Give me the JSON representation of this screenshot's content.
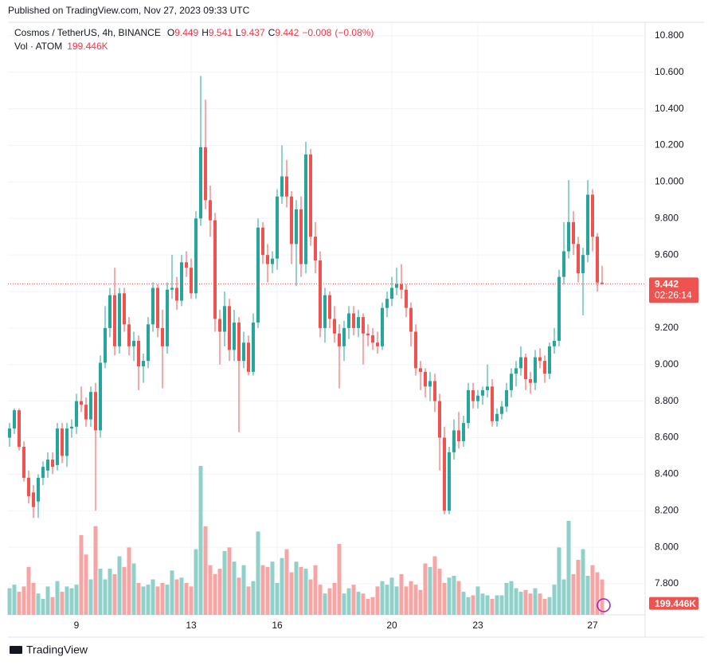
{
  "published": "Published on TradingView.com, Nov 27, 2023 09:33 UTC",
  "logo": "TradingView",
  "chart_data": {
    "type": "candlestick",
    "title": "Cosmos / TetherUS, 4h, BINANCE",
    "legend": {
      "fields": [
        {
          "letter": "O",
          "value": 9.449
        },
        {
          "letter": "H",
          "value": 9.541
        },
        {
          "letter": "L",
          "value": 9.437
        },
        {
          "letter": "C",
          "value": 9.442
        }
      ],
      "change": {
        "value": -0.008,
        "label": "−0.008"
      },
      "change_pct": {
        "value": -0.08,
        "label": "(−0.08%)"
      }
    },
    "volume_legend": {
      "name": "Vol · ATOM",
      "value": 199446,
      "label": "199.446K"
    },
    "countdown": "02:26:14",
    "up_color": "#26a69a",
    "down_color": "#ef5350",
    "up_volume_color": "#8fd1c9",
    "down_volume_color": "#f5a6a4",
    "grid": true,
    "ylim": [
      7.63,
      10.865
    ],
    "yticks": [
      {
        "value": 7.8,
        "label": "7.800"
      },
      {
        "value": 8.0,
        "label": "8.000"
      },
      {
        "value": 8.2,
        "label": "8.200"
      },
      {
        "value": 8.4,
        "label": "8.400"
      },
      {
        "value": 8.6,
        "label": "8.600"
      },
      {
        "value": 8.8,
        "label": "8.800"
      },
      {
        "value": 9.0,
        "label": "9.000"
      },
      {
        "value": 9.2,
        "label": "9.200"
      },
      {
        "value": 9.4,
        "label": "9.400"
      },
      {
        "value": 9.6,
        "label": "9.600"
      },
      {
        "value": 9.8,
        "label": "9.800"
      },
      {
        "value": 10.0,
        "label": "10.000"
      },
      {
        "value": 10.2,
        "label": "10.200"
      },
      {
        "value": 10.4,
        "label": "10.400"
      },
      {
        "value": 10.6,
        "label": "10.600"
      },
      {
        "value": 10.8,
        "label": "10.800"
      }
    ],
    "categories": [
      null,
      null,
      null,
      null,
      null,
      null,
      null,
      null,
      null,
      null,
      null,
      null,
      null,
      null,
      "9",
      null,
      null,
      null,
      null,
      null,
      null,
      null,
      null,
      null,
      null,
      null,
      null,
      null,
      null,
      null,
      null,
      null,
      null,
      null,
      null,
      null,
      null,
      null,
      "13",
      null,
      null,
      null,
      null,
      null,
      null,
      null,
      null,
      null,
      null,
      null,
      null,
      null,
      null,
      null,
      null,
      null,
      "16",
      null,
      null,
      null,
      null,
      null,
      null,
      null,
      null,
      null,
      null,
      null,
      null,
      null,
      null,
      null,
      null,
      null,
      null,
      null,
      null,
      null,
      null,
      null,
      "20",
      null,
      null,
      null,
      null,
      null,
      null,
      null,
      null,
      null,
      null,
      null,
      null,
      null,
      null,
      null,
      null,
      null,
      "23",
      null,
      null,
      null,
      null,
      null,
      null,
      null,
      null,
      null,
      null,
      null,
      null,
      null,
      null,
      null,
      null,
      null,
      null,
      null,
      null,
      null,
      null,
      null,
      "27",
      null,
      null
    ],
    "ohlc": [
      [
        8.6,
        8.68,
        8.55,
        8.65
      ],
      [
        8.65,
        8.76,
        8.62,
        8.75
      ],
      [
        8.75,
        8.76,
        8.53,
        8.55
      ],
      [
        8.55,
        8.58,
        8.36,
        8.38
      ],
      [
        8.38,
        8.42,
        8.24,
        8.28
      ],
      [
        8.3,
        8.34,
        8.16,
        8.22
      ],
      [
        8.25,
        8.4,
        8.16,
        8.38
      ],
      [
        8.38,
        8.47,
        8.34,
        8.44
      ],
      [
        8.42,
        8.52,
        8.38,
        8.48
      ],
      [
        8.48,
        8.52,
        8.4,
        8.44
      ],
      [
        8.45,
        8.68,
        8.42,
        8.65
      ],
      [
        8.65,
        8.68,
        8.46,
        8.5
      ],
      [
        8.5,
        8.68,
        8.44,
        8.65
      ],
      [
        8.65,
        8.7,
        8.6,
        8.66
      ],
      [
        8.66,
        8.84,
        8.62,
        8.8
      ],
      [
        8.8,
        8.88,
        8.74,
        8.78
      ],
      [
        8.78,
        8.82,
        8.66,
        8.7
      ],
      [
        8.7,
        8.88,
        8.66,
        8.85
      ],
      [
        8.85,
        8.9,
        8.2,
        8.64
      ],
      [
        8.64,
        9.05,
        8.6,
        9.01
      ],
      [
        9.01,
        9.32,
        8.98,
        9.2
      ],
      [
        9.2,
        9.42,
        9.15,
        9.38
      ],
      [
        9.38,
        9.53,
        9.05,
        9.1
      ],
      [
        9.1,
        9.42,
        9.06,
        9.39
      ],
      [
        9.39,
        9.42,
        9.18,
        9.22
      ],
      [
        9.22,
        9.26,
        9.05,
        9.1
      ],
      [
        9.1,
        9.18,
        9.02,
        9.13
      ],
      [
        9.13,
        9.16,
        8.86,
        8.99
      ],
      [
        8.99,
        9.06,
        8.9,
        9.02
      ],
      [
        9.02,
        9.26,
        8.98,
        9.22
      ],
      [
        9.22,
        9.45,
        9.18,
        9.42
      ],
      [
        9.42,
        9.44,
        9.15,
        9.2
      ],
      [
        9.2,
        9.3,
        8.87,
        9.1
      ],
      [
        9.1,
        9.45,
        9.06,
        9.41
      ],
      [
        9.41,
        9.6,
        9.36,
        9.42
      ],
      [
        9.42,
        9.48,
        9.3,
        9.35
      ],
      [
        9.35,
        9.6,
        9.32,
        9.56
      ],
      [
        9.56,
        9.62,
        9.48,
        9.53
      ],
      [
        9.53,
        9.58,
        9.36,
        9.39
      ],
      [
        9.39,
        9.84,
        9.36,
        9.8
      ],
      [
        9.8,
        10.58,
        9.76,
        10.19
      ],
      [
        10.19,
        10.45,
        9.85,
        9.9
      ],
      [
        9.9,
        9.98,
        9.7,
        9.79
      ],
      [
        9.79,
        9.83,
        9.18,
        9.25
      ],
      [
        9.25,
        9.3,
        9.0,
        9.18
      ],
      [
        9.18,
        9.4,
        9.1,
        9.32
      ],
      [
        9.32,
        9.36,
        9.02,
        9.08
      ],
      [
        9.08,
        9.3,
        9.02,
        9.23
      ],
      [
        9.23,
        9.26,
        8.63,
        9.02
      ],
      [
        9.02,
        9.18,
        8.98,
        9.12
      ],
      [
        9.12,
        9.16,
        8.94,
        8.96
      ],
      [
        8.96,
        9.28,
        8.94,
        9.23
      ],
      [
        9.23,
        9.8,
        9.2,
        9.75
      ],
      [
        9.75,
        9.78,
        9.55,
        9.6
      ],
      [
        9.6,
        9.66,
        9.45,
        9.55
      ],
      [
        9.55,
        9.62,
        9.5,
        9.58
      ],
      [
        9.58,
        9.96,
        9.52,
        9.92
      ],
      [
        9.92,
        10.2,
        9.88,
        10.03
      ],
      [
        10.03,
        10.12,
        9.86,
        9.92
      ],
      [
        9.92,
        9.95,
        9.55,
        9.66
      ],
      [
        9.66,
        9.9,
        9.43,
        9.85
      ],
      [
        9.85,
        9.92,
        9.48,
        9.55
      ],
      [
        9.55,
        10.22,
        9.5,
        10.15
      ],
      [
        10.15,
        10.18,
        9.65,
        9.7
      ],
      [
        9.7,
        9.78,
        9.5,
        9.57
      ],
      [
        9.57,
        9.62,
        9.15,
        9.2
      ],
      [
        9.2,
        9.42,
        9.12,
        9.38
      ],
      [
        9.38,
        9.4,
        9.2,
        9.25
      ],
      [
        9.25,
        9.32,
        9.12,
        9.17
      ],
      [
        9.17,
        9.22,
        8.87,
        9.1
      ],
      [
        9.1,
        9.24,
        9.02,
        9.2
      ],
      [
        9.2,
        9.32,
        9.14,
        9.28
      ],
      [
        9.28,
        9.32,
        9.16,
        9.2
      ],
      [
        9.2,
        9.3,
        9.15,
        9.26
      ],
      [
        9.26,
        9.28,
        9.0,
        9.17
      ],
      [
        9.17,
        9.22,
        9.1,
        9.16
      ],
      [
        9.16,
        9.2,
        9.08,
        9.12
      ],
      [
        9.12,
        9.18,
        9.06,
        9.1
      ],
      [
        9.1,
        9.34,
        9.08,
        9.31
      ],
      [
        9.31,
        9.4,
        9.26,
        9.36
      ],
      [
        9.36,
        9.48,
        9.32,
        9.42
      ],
      [
        9.42,
        9.53,
        9.38,
        9.44
      ],
      [
        9.44,
        9.55,
        9.36,
        9.41
      ],
      [
        9.41,
        9.44,
        9.26,
        9.31
      ],
      [
        9.31,
        9.34,
        9.1,
        9.18
      ],
      [
        9.18,
        9.22,
        8.94,
        8.98
      ],
      [
        8.98,
        9.02,
        8.86,
        8.96
      ],
      [
        8.96,
        8.98,
        8.82,
        8.88
      ],
      [
        8.88,
        8.96,
        8.8,
        8.91
      ],
      [
        8.91,
        8.95,
        8.74,
        8.8
      ],
      [
        8.8,
        8.84,
        8.42,
        8.6
      ],
      [
        8.6,
        8.66,
        8.18,
        8.2
      ],
      [
        8.2,
        8.55,
        8.18,
        8.52
      ],
      [
        8.52,
        8.7,
        8.48,
        8.64
      ],
      [
        8.64,
        8.74,
        8.54,
        8.58
      ],
      [
        8.58,
        8.72,
        8.55,
        8.68
      ],
      [
        8.68,
        8.9,
        8.65,
        8.86
      ],
      [
        8.86,
        8.9,
        8.76,
        8.8
      ],
      [
        8.8,
        8.86,
        8.76,
        8.83
      ],
      [
        8.83,
        8.88,
        8.78,
        8.86
      ],
      [
        8.86,
        9.0,
        8.82,
        8.88
      ],
      [
        8.88,
        8.92,
        8.66,
        8.69
      ],
      [
        8.69,
        8.76,
        8.66,
        8.73
      ],
      [
        8.73,
        8.8,
        8.7,
        8.77
      ],
      [
        8.77,
        8.9,
        8.74,
        8.86
      ],
      [
        8.86,
        8.98,
        8.82,
        8.95
      ],
      [
        8.95,
        9.02,
        8.88,
        8.98
      ],
      [
        8.98,
        9.1,
        8.94,
        9.04
      ],
      [
        9.04,
        9.06,
        8.86,
        8.92
      ],
      [
        8.92,
        8.96,
        8.84,
        8.9
      ],
      [
        8.9,
        9.08,
        8.86,
        9.04
      ],
      [
        9.04,
        9.09,
        8.98,
        9.02
      ],
      [
        9.02,
        9.05,
        8.9,
        8.95
      ],
      [
        8.95,
        9.12,
        8.92,
        9.1
      ],
      [
        9.1,
        9.2,
        9.06,
        9.13
      ],
      [
        9.13,
        9.52,
        9.1,
        9.48
      ],
      [
        9.48,
        9.78,
        9.44,
        9.62
      ],
      [
        9.62,
        10.01,
        9.58,
        9.78
      ],
      [
        9.78,
        9.84,
        9.6,
        9.66
      ],
      [
        9.66,
        9.7,
        9.45,
        9.5
      ],
      [
        9.5,
        9.64,
        9.27,
        9.6
      ],
      [
        9.6,
        10.01,
        9.56,
        9.93
      ],
      [
        9.93,
        9.96,
        9.62,
        9.7
      ],
      [
        9.7,
        9.72,
        9.4,
        9.449
      ],
      [
        9.449,
        9.541,
        9.437,
        9.442
      ]
    ],
    "volume": [
      150000,
      170000,
      130000,
      160000,
      270000,
      180000,
      120000,
      90000,
      160000,
      100000,
      190000,
      130000,
      160000,
      150000,
      170000,
      450000,
      340000,
      200000,
      500000,
      260000,
      200000,
      260000,
      230000,
      330000,
      270000,
      380000,
      290000,
      180000,
      160000,
      170000,
      200000,
      160000,
      180000,
      170000,
      250000,
      200000,
      210000,
      180000,
      160000,
      370000,
      840000,
      500000,
      280000,
      230000,
      260000,
      360000,
      380000,
      300000,
      210000,
      280000,
      160000,
      190000,
      470000,
      280000,
      270000,
      300000,
      180000,
      320000,
      370000,
      240000,
      300000,
      270000,
      260000,
      200000,
      280000,
      170000,
      120000,
      150000,
      180000,
      400000,
      120000,
      150000,
      170000,
      130000,
      120000,
      90000,
      100000,
      160000,
      190000,
      170000,
      210000,
      160000,
      230000,
      160000,
      190000,
      170000,
      140000,
      290000,
      270000,
      330000,
      260000,
      180000,
      210000,
      220000,
      190000,
      130000,
      100000,
      110000,
      160000,
      120000,
      110000,
      90000,
      110000,
      110000,
      180000,
      190000,
      150000,
      130000,
      140000,
      120000,
      150000,
      120000,
      90000,
      100000,
      170000,
      380000,
      200000,
      530000,
      230000,
      310000,
      370000,
      220000,
      280000,
      240000,
      199446
    ]
  }
}
